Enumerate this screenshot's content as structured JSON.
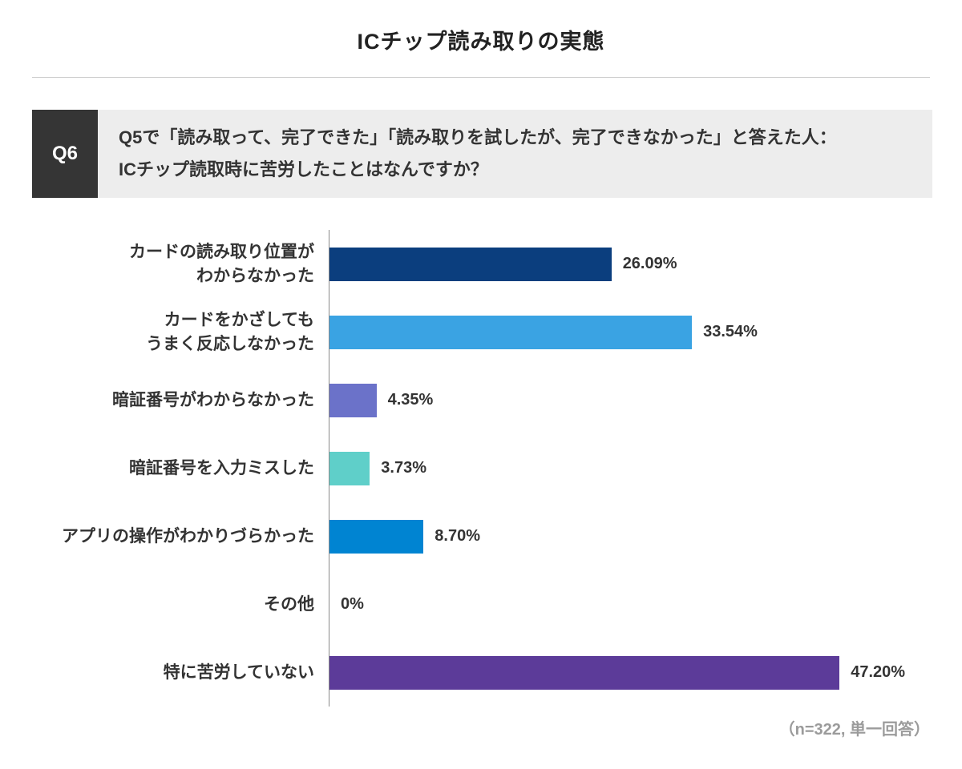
{
  "page": {
    "title": "ICチップ読み取りの実態",
    "footer_note": "（n=322, 単一回答）"
  },
  "question": {
    "badge": "Q6",
    "line1": "Q5で「読み取って、完了できた」「読み取りを試したが、完了できなかった」と答えた人：",
    "line2": "ICチップ読取時に苦労したことはなんですか？"
  },
  "colors": {
    "q_badge_bg": "#353535",
    "question_bg": "#ededed",
    "text": "#333333",
    "axis": "#8a8a8a",
    "divider": "#c9c9c9",
    "footer_text": "#9b9b9b"
  },
  "chart_data": {
    "type": "bar",
    "orientation": "horizontal",
    "title": "ICチップ読み取りの実態",
    "xlabel": "",
    "ylabel": "",
    "xlim": [
      0,
      50
    ],
    "grid": false,
    "legend": false,
    "categories": [
      "カードの読み取り位置が\nわからなかった",
      "カードをかざしても\nうまく反応しなかった",
      "暗証番号がわからなかった",
      "暗証番号を入力ミスした",
      "アプリの操作がわかりづらかった",
      "その他",
      "特に苦労していない"
    ],
    "values": [
      26.09,
      33.54,
      4.35,
      3.73,
      8.7,
      0,
      47.2
    ],
    "value_labels": [
      "26.09%",
      "33.54%",
      "4.35%",
      "3.73%",
      "8.70%",
      "0%",
      "47.20%"
    ],
    "bar_colors": [
      "#0b3e7e",
      "#3aa3e3",
      "#6b72c9",
      "#5fcfc9",
      "#0084d2",
      "#888888",
      "#5c3b99"
    ],
    "sample_note": "（n=322, 単一回答）"
  }
}
